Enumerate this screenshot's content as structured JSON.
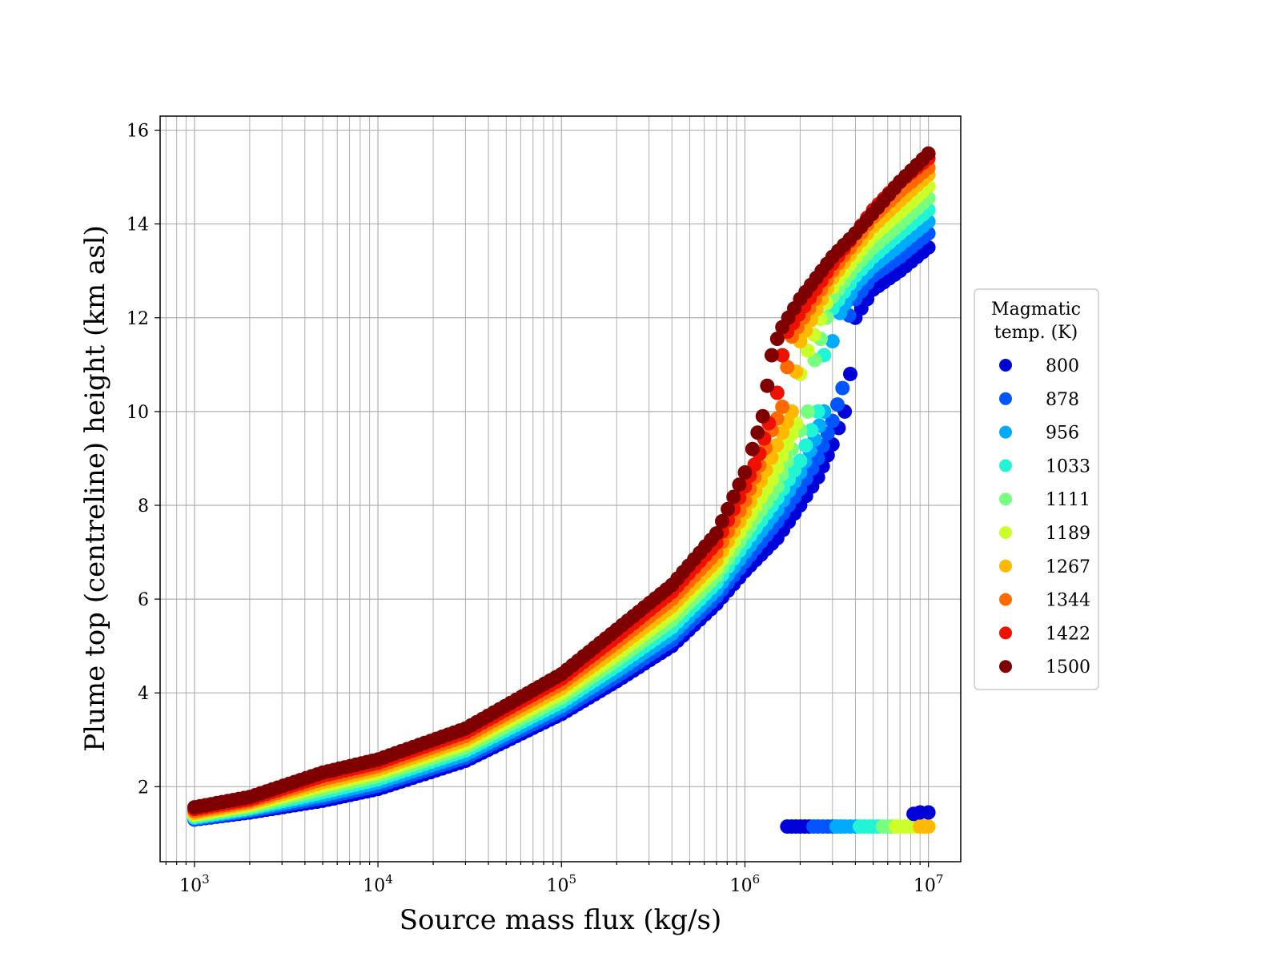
{
  "chart_data": {
    "type": "scatter",
    "title": "",
    "xlabel": "Source mass flux (kg/s)",
    "ylabel": "Plume top (centreline) height (km asl)",
    "xscale": "log",
    "xlim": [
      650,
      15000000
    ],
    "ylim": [
      0.4,
      16.3
    ],
    "x_ticks": [
      {
        "value": 1000,
        "base": "10",
        "exp": "3"
      },
      {
        "value": 10000,
        "base": "10",
        "exp": "4"
      },
      {
        "value": 100000,
        "base": "10",
        "exp": "5"
      },
      {
        "value": 1000000,
        "base": "10",
        "exp": "6"
      },
      {
        "value": 10000000,
        "base": "10",
        "exp": "7"
      }
    ],
    "y_ticks": [
      {
        "value": 2,
        "label": "2"
      },
      {
        "value": 4,
        "label": "4"
      },
      {
        "value": 6,
        "label": "6"
      },
      {
        "value": 8,
        "label": "8"
      },
      {
        "value": 10,
        "label": "10"
      },
      {
        "value": 12,
        "label": "12"
      },
      {
        "value": 14,
        "label": "14"
      },
      {
        "value": 16,
        "label": "16"
      }
    ],
    "grid": true,
    "grid_minor_x": true,
    "legend_position": "right-outside",
    "legend_title": "Magmatic temp. (K)",
    "legend_title_lines": [
      "Magmatic",
      "temp. (K)"
    ],
    "marker_size_note": "large round markers",
    "series": [
      {
        "name": "800",
        "color": "#0000d8",
        "x": [
          1000,
          2000,
          5000,
          10000,
          30000,
          100000,
          200000,
          400000,
          700000,
          1000000,
          1500000,
          2000000,
          2500000,
          3000000,
          3500000,
          3750000,
          4000000,
          5000000,
          7000000,
          10000000
        ],
        "y": [
          1.3,
          1.45,
          1.7,
          1.95,
          2.55,
          3.55,
          4.25,
          5.0,
          5.9,
          6.6,
          7.3,
          8.0,
          8.6,
          9.3,
          10.0,
          10.8,
          12.0,
          12.6,
          13.0,
          13.5
        ]
      },
      {
        "name": "878",
        "color": "#0055ff",
        "x": [
          1000,
          2000,
          5000,
          10000,
          30000,
          100000,
          200000,
          400000,
          700000,
          1000000,
          1500000,
          2000000,
          2500000,
          3000000,
          3400000,
          3700000,
          4000000,
          5000000,
          7000000,
          10000000
        ],
        "y": [
          1.31,
          1.48,
          1.76,
          2.02,
          2.62,
          3.63,
          4.35,
          5.12,
          6.05,
          6.8,
          7.65,
          8.35,
          9.0,
          9.8,
          10.5,
          12.05,
          12.4,
          12.9,
          13.3,
          13.8
        ]
      },
      {
        "name": "956",
        "color": "#00aaff",
        "x": [
          1000,
          2000,
          5000,
          10000,
          30000,
          100000,
          200000,
          400000,
          700000,
          1000000,
          1500000,
          2000000,
          2400000,
          2700000,
          3000000,
          3300000,
          4000000,
          5000000,
          7000000,
          10000000
        ],
        "y": [
          1.33,
          1.51,
          1.82,
          2.09,
          2.69,
          3.72,
          4.46,
          5.26,
          6.2,
          7.0,
          7.9,
          8.7,
          9.4,
          10.0,
          11.5,
          12.1,
          12.7,
          13.1,
          13.55,
          14.05
        ]
      },
      {
        "name": "1033",
        "color": "#22f5d5",
        "x": [
          1000,
          2000,
          5000,
          10000,
          30000,
          100000,
          200000,
          400000,
          700000,
          1000000,
          1500000,
          2000000,
          2300000,
          2500000,
          2700000,
          3000000,
          4000000,
          5000000,
          7000000,
          10000000
        ],
        "y": [
          1.35,
          1.54,
          1.88,
          2.16,
          2.77,
          3.81,
          4.58,
          5.4,
          6.35,
          7.2,
          8.15,
          8.95,
          9.6,
          10.0,
          11.2,
          12.2,
          12.9,
          13.3,
          13.8,
          14.3
        ]
      },
      {
        "name": "1111",
        "color": "#77ff80",
        "x": [
          1000,
          2000,
          5000,
          10000,
          30000,
          100000,
          200000,
          400000,
          700000,
          1000000,
          1500000,
          1800000,
          2000000,
          2200000,
          2400000,
          3000000,
          4000000,
          5000000,
          7000000,
          10000000
        ],
        "y": [
          1.38,
          1.57,
          1.95,
          2.23,
          2.84,
          3.9,
          4.7,
          5.55,
          6.5,
          7.4,
          8.4,
          9.2,
          9.6,
          10.0,
          11.1,
          12.45,
          13.1,
          13.5,
          14.0,
          14.55
        ]
      },
      {
        "name": "1189",
        "color": "#ccff2a",
        "x": [
          1000,
          2000,
          5000,
          10000,
          30000,
          100000,
          200000,
          400000,
          700000,
          1000000,
          1400000,
          1700000,
          1900000,
          2000000,
          2200000,
          3000000,
          4000000,
          5000000,
          7000000,
          10000000
        ],
        "y": [
          1.41,
          1.61,
          2.02,
          2.3,
          2.92,
          4.0,
          4.82,
          5.7,
          6.66,
          7.6,
          8.55,
          9.3,
          9.75,
          10.8,
          11.3,
          12.65,
          13.3,
          13.75,
          14.25,
          14.8
        ]
      },
      {
        "name": "1267",
        "color": "#ffb900",
        "x": [
          1000,
          2000,
          5000,
          10000,
          30000,
          100000,
          200000,
          400000,
          700000,
          1000000,
          1300000,
          1600000,
          1800000,
          1900000,
          2000000,
          3000000,
          4000000,
          5000000,
          7000000,
          10000000
        ],
        "y": [
          1.44,
          1.65,
          2.09,
          2.37,
          3.0,
          4.1,
          4.95,
          5.85,
          6.82,
          7.85,
          8.75,
          9.55,
          10.0,
          10.85,
          11.5,
          12.85,
          13.5,
          13.95,
          14.5,
          15.05
        ]
      },
      {
        "name": "1344",
        "color": "#ff6a00",
        "x": [
          1000,
          2000,
          5000,
          10000,
          30000,
          100000,
          200000,
          400000,
          700000,
          1000000,
          1200000,
          1400000,
          1600000,
          1700000,
          1800000,
          3000000,
          4000000,
          5000000,
          7000000,
          10000000
        ],
        "y": [
          1.48,
          1.69,
          2.16,
          2.44,
          3.08,
          4.2,
          5.08,
          6.0,
          7.0,
          8.1,
          8.85,
          9.6,
          10.1,
          10.95,
          11.6,
          13.0,
          13.65,
          14.15,
          14.7,
          15.2
        ]
      },
      {
        "name": "1422",
        "color": "#ee1100",
        "x": [
          1000,
          2000,
          5000,
          10000,
          30000,
          100000,
          200000,
          400000,
          700000,
          1000000,
          1200000,
          1350000,
          1500000,
          1600000,
          1700000,
          3000000,
          4000000,
          5000000,
          7000000,
          10000000
        ],
        "y": [
          1.52,
          1.73,
          2.23,
          2.51,
          3.16,
          4.3,
          5.2,
          6.15,
          7.2,
          8.4,
          9.1,
          9.75,
          10.4,
          11.2,
          11.7,
          13.15,
          13.8,
          14.3,
          14.9,
          15.4
        ]
      },
      {
        "name": "1500",
        "color": "#7f0000",
        "x": [
          1000,
          2000,
          5000,
          10000,
          30000,
          100000,
          200000,
          400000,
          700000,
          1000000,
          1100000,
          1250000,
          1400000,
          1500000,
          1600000,
          2000000,
          3000000,
          4000000,
          7000000,
          10000000
        ],
        "y": [
          1.56,
          1.78,
          2.3,
          2.58,
          3.24,
          4.4,
          5.35,
          6.3,
          7.4,
          8.7,
          9.2,
          9.9,
          11.2,
          11.55,
          11.8,
          12.4,
          13.3,
          13.8,
          14.9,
          15.5
        ]
      }
    ],
    "lower_branch": {
      "x": [
        1700000,
        2000000,
        2500000,
        3000000,
        3500000,
        4000000,
        5000000,
        6000000,
        7000000,
        8000000,
        9000000,
        10000000
      ],
      "y": [
        1.15,
        1.15,
        1.15,
        1.15,
        1.15,
        1.15,
        1.15,
        1.15,
        1.15,
        1.15,
        1.15,
        1.15
      ],
      "colors": [
        "#0000d8",
        "#0000d8",
        "#0055ff",
        "#0055ff",
        "#00aaff",
        "#00aaff",
        "#22f5d5",
        "#22f5d5",
        "#77ff80",
        "#ccff2a",
        "#ccff2a",
        "#ffb900"
      ],
      "upper_points": {
        "x": [
          8300000,
          9000000,
          10000000
        ],
        "y": [
          1.42,
          1.45,
          1.45
        ],
        "color": "#0000d8"
      }
    }
  }
}
